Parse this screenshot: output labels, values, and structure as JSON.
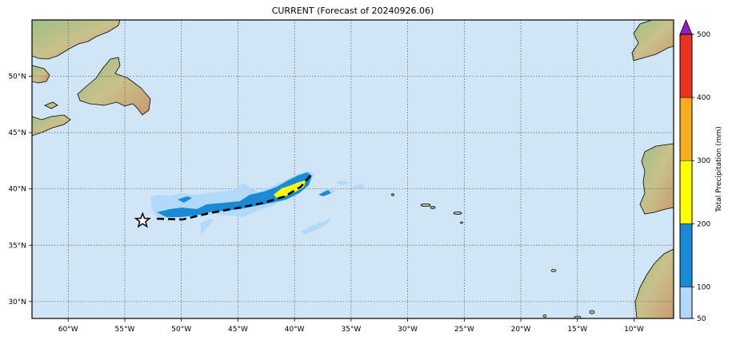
{
  "title": "CURRENT (Forecast of 20240926.06)",
  "map": {
    "lon_ticks": [
      "60°W",
      "55°W",
      "50°W",
      "45°W",
      "40°W",
      "35°W",
      "30°W",
      "25°W",
      "20°W",
      "15°W",
      "10°W"
    ],
    "lon_values": [
      -60,
      -55,
      -50,
      -45,
      -40,
      -35,
      -30,
      -25,
      -20,
      -15,
      -10
    ],
    "lat_ticks": [
      "50°N",
      "45°N",
      "40°N",
      "35°N",
      "30°N"
    ],
    "lat_values": [
      50,
      45,
      40,
      35,
      30
    ],
    "lon_range": [
      -63.2,
      -6.5
    ],
    "lat_range": [
      28.5,
      55
    ],
    "ocean_color": "#d0e6f6",
    "land_color": "#b7c99a",
    "grid": "dotted",
    "storm_marker": {
      "type": "star",
      "lon": -53.4,
      "lat": 37.2
    },
    "track_style": "dashed"
  },
  "colorbar": {
    "label": "Total Precipitation (mm)",
    "ticks": [
      "50",
      "100",
      "200",
      "300",
      "400",
      "500"
    ],
    "bins": [
      {
        "from": 50,
        "to": 100,
        "color": "#b3d9fa"
      },
      {
        "from": 100,
        "to": 200,
        "color": "#1a8ad4"
      },
      {
        "from": 200,
        "to": 300,
        "color": "#ffff00"
      },
      {
        "from": 300,
        "to": 400,
        "color": "#f8ad20"
      },
      {
        "from": 400,
        "to": 500,
        "color": "#ec3221"
      }
    ],
    "extend_color": "#8f1ec7"
  }
}
